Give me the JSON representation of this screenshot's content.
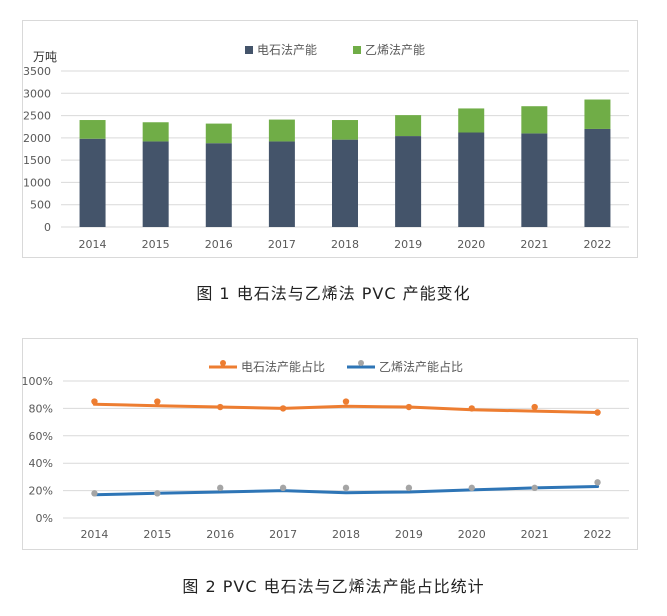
{
  "chart_data": [
    {
      "type": "bar",
      "stacked": true,
      "unit_label": "万吨",
      "categories": [
        "2014",
        "2015",
        "2016",
        "2017",
        "2018",
        "2019",
        "2020",
        "2021",
        "2022"
      ],
      "series": [
        {
          "name": "电石法产能",
          "color": "#44546a",
          "values": [
            1980,
            1920,
            1880,
            1920,
            1960,
            2040,
            2120,
            2100,
            2200
          ]
        },
        {
          "name": "乙烯法产能",
          "color": "#70ad47",
          "values": [
            420,
            430,
            440,
            490,
            440,
            470,
            540,
            610,
            660
          ]
        }
      ],
      "ylim": [
        0,
        3500
      ],
      "yticks": [
        "0",
        "500",
        "1000",
        "1500",
        "2000",
        "2500",
        "3000",
        "3500"
      ],
      "grid": true,
      "legend": "top",
      "caption": "图 1  电石法与乙烯法 PVC 产能变化"
    },
    {
      "type": "line",
      "categories": [
        "2014",
        "2015",
        "2016",
        "2017",
        "2018",
        "2019",
        "2020",
        "2021",
        "2022"
      ],
      "series": [
        {
          "name": "电石法产能占比",
          "color": "#ed7d31",
          "points": [
            0.85,
            0.85,
            0.81,
            0.8,
            0.85,
            0.81,
            0.8,
            0.81,
            0.77
          ],
          "trend": [
            0.83,
            0.82,
            0.81,
            0.8,
            0.815,
            0.81,
            0.79,
            0.78,
            0.77
          ]
        },
        {
          "name": "乙烯法产能占比",
          "color": "#2e75b6",
          "point_color": "#a5a5a5",
          "points": [
            0.18,
            0.18,
            0.22,
            0.22,
            0.22,
            0.22,
            0.22,
            0.22,
            0.26
          ],
          "trend": [
            0.17,
            0.18,
            0.19,
            0.2,
            0.185,
            0.19,
            0.205,
            0.22,
            0.23
          ]
        }
      ],
      "ylim": [
        0,
        1
      ],
      "yticks": [
        "0%",
        "20%",
        "40%",
        "60%",
        "80%",
        "100%"
      ],
      "grid": true,
      "legend": "top",
      "caption": "图 2  PVC 电石法与乙烯法产能占比统计"
    }
  ]
}
